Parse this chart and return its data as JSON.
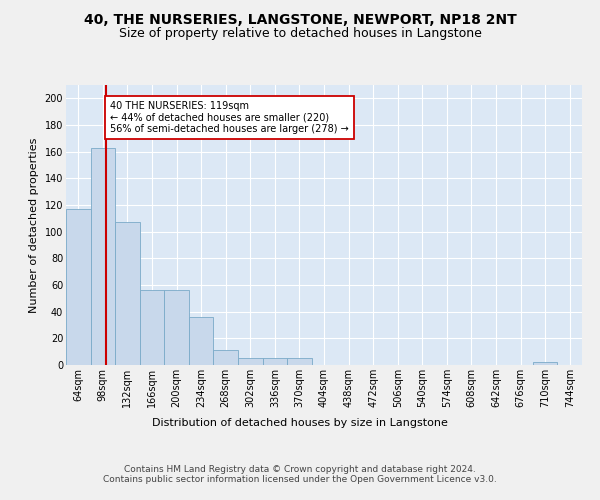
{
  "title1": "40, THE NURSERIES, LANGSTONE, NEWPORT, NP18 2NT",
  "title2": "Size of property relative to detached houses in Langstone",
  "xlabel": "Distribution of detached houses by size in Langstone",
  "ylabel": "Number of detached properties",
  "bins": [
    "64sqm",
    "98sqm",
    "132sqm",
    "166sqm",
    "200sqm",
    "234sqm",
    "268sqm",
    "302sqm",
    "336sqm",
    "370sqm",
    "404sqm",
    "438sqm",
    "472sqm",
    "506sqm",
    "540sqm",
    "574sqm",
    "608sqm",
    "642sqm",
    "676sqm",
    "710sqm",
    "744sqm"
  ],
  "bar_heights": [
    117,
    163,
    107,
    56,
    56,
    36,
    11,
    5,
    5,
    5,
    0,
    0,
    0,
    0,
    0,
    0,
    0,
    0,
    0,
    2,
    0
  ],
  "bar_color": "#c8d8eb",
  "bar_edge_color": "#7aaac8",
  "subject_line_color": "#cc0000",
  "annotation_text": "40 THE NURSERIES: 119sqm\n← 44% of detached houses are smaller (220)\n56% of semi-detached houses are larger (278) →",
  "annotation_box_color": "#ffffff",
  "annotation_box_edge": "#cc0000",
  "ylim": [
    0,
    210
  ],
  "yticks": [
    0,
    20,
    40,
    60,
    80,
    100,
    120,
    140,
    160,
    180,
    200
  ],
  "footer1": "Contains HM Land Registry data © Crown copyright and database right 2024.",
  "footer2": "Contains public sector information licensed under the Open Government Licence v3.0.",
  "bg_color": "#f0f0f0",
  "plot_bg_color": "#dce8f5",
  "grid_color": "#ffffff",
  "title_fontsize": 10,
  "subtitle_fontsize": 9,
  "axis_label_fontsize": 8,
  "tick_fontsize": 7,
  "footer_fontsize": 6.5
}
